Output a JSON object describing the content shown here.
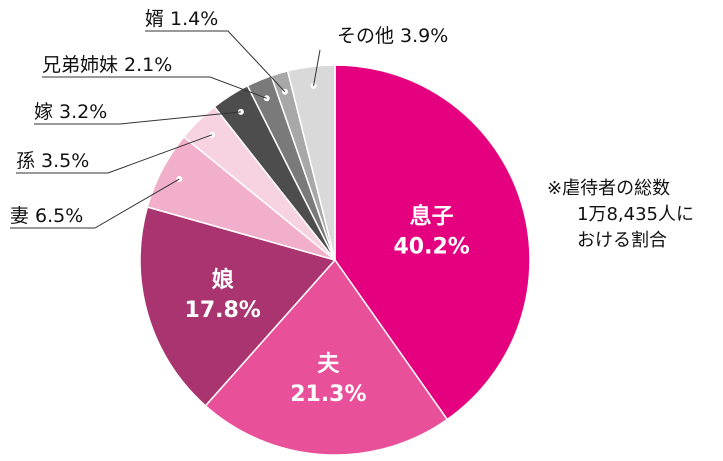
{
  "chart_data": {
    "type": "pie",
    "slices": [
      {
        "category": "息子",
        "percent_label": "40.2%",
        "value": 40.2,
        "color": "#e4007f",
        "label_position": "inside"
      },
      {
        "category": "夫",
        "percent_label": "21.3%",
        "value": 21.3,
        "color": "#e9509a",
        "label_position": "inside"
      },
      {
        "category": "娘",
        "percent_label": "17.8%",
        "value": 17.8,
        "color": "#a93470",
        "label_position": "inside"
      },
      {
        "category": "妻",
        "percent_label": "6.5%",
        "value": 6.5,
        "color": "#f1afcb",
        "label_position": "outside"
      },
      {
        "category": "孫",
        "percent_label": "3.5%",
        "value": 3.5,
        "color": "#f7d3e2",
        "label_position": "outside"
      },
      {
        "category": "嫁",
        "percent_label": "3.2%",
        "value": 3.2,
        "color": "#4d4d4d",
        "label_position": "outside"
      },
      {
        "category": "兄弟姉妹",
        "percent_label": "2.1%",
        "value": 2.1,
        "color": "#7a7a7a",
        "label_position": "outside"
      },
      {
        "category": "婿",
        "percent_label": "1.4%",
        "value": 1.4,
        "color": "#a8a8a8",
        "label_position": "outside"
      },
      {
        "category": "その他",
        "percent_label": "3.9%",
        "value": 3.9,
        "color": "#d9d9d9",
        "label_position": "outside"
      }
    ],
    "start": "12 o'clock",
    "direction": "clockwise",
    "annotations": [
      "※虐待者の総数",
      "1万8,435人に",
      "おける割合"
    ],
    "title": "",
    "legend": "none"
  }
}
